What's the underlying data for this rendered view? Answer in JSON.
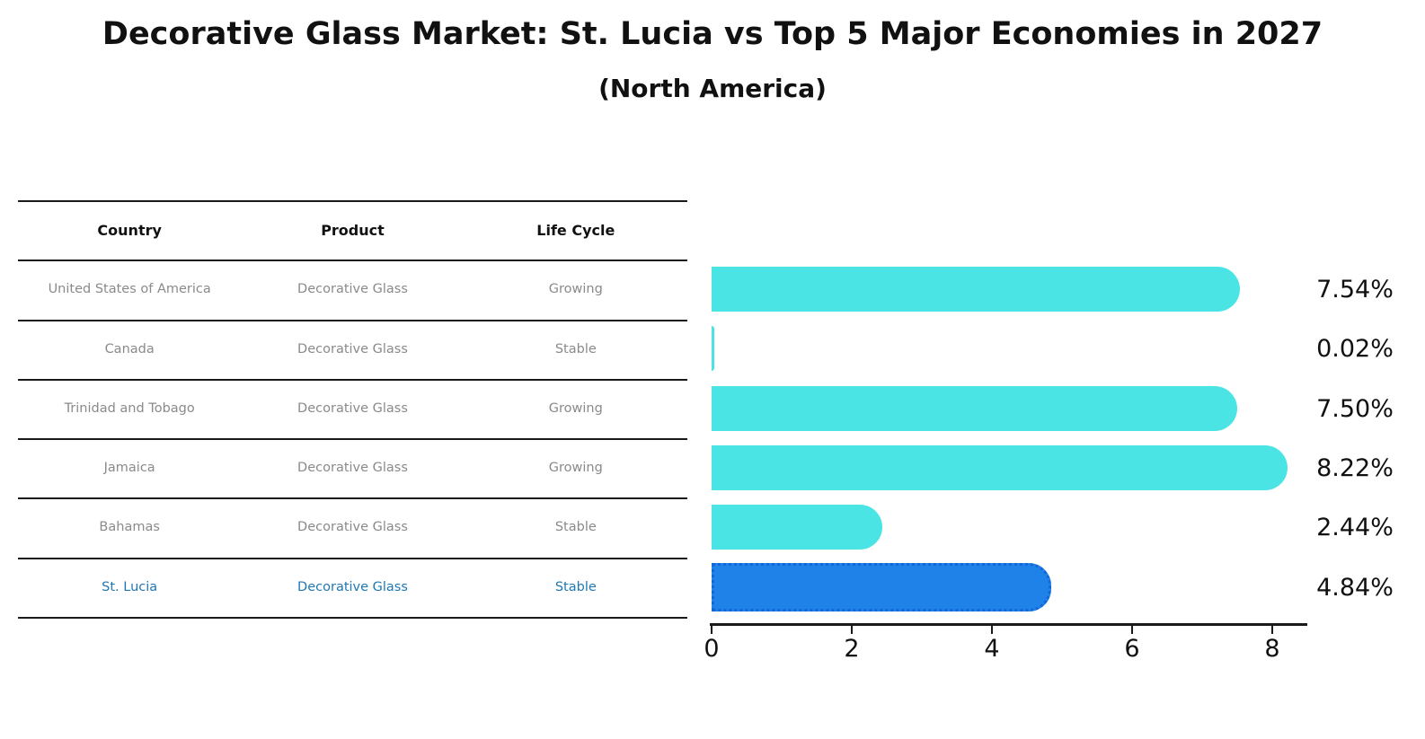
{
  "table": {
    "headers": [
      "Country",
      "Product",
      "Life Cycle"
    ],
    "rows": [
      {
        "country": "United States of America",
        "product": "Decorative Glass",
        "life_cycle": "Growing",
        "highlight": false
      },
      {
        "country": "Canada",
        "product": "Decorative Glass",
        "life_cycle": "Stable",
        "highlight": false
      },
      {
        "country": "Trinidad and Tobago",
        "product": "Decorative Glass",
        "life_cycle": "Growing",
        "highlight": false
      },
      {
        "country": "Jamaica",
        "product": "Decorative Glass",
        "life_cycle": "Growing",
        "highlight": false
      },
      {
        "country": "Bahamas",
        "product": "Decorative Glass",
        "life_cycle": "Stable",
        "highlight": false
      },
      {
        "country": "St. Lucia",
        "product": "Decorative Glass",
        "life_cycle": "Stable",
        "highlight": true
      }
    ]
  },
  "chart_data": {
    "type": "bar",
    "orientation": "horizontal",
    "title": "Decorative Glass Market: St. Lucia vs Top 5 Major Economies in 2027",
    "subtitle": "(North America)",
    "categories": [
      "United States of America",
      "Canada",
      "Trinidad and Tobago",
      "Jamaica",
      "Bahamas",
      "St. Lucia"
    ],
    "values": [
      7.54,
      0.02,
      7.5,
      8.22,
      2.44,
      4.84
    ],
    "value_labels": [
      "7.54%",
      "0.02%",
      "7.50%",
      "8.22%",
      "2.44%",
      "4.84%"
    ],
    "highlight_index": 5,
    "x_ticks": [
      "0",
      "2",
      "4",
      "6",
      "8"
    ],
    "xlim": [
      0,
      8.5
    ],
    "grid": false,
    "legend": "none",
    "colors": {
      "bar": "#4BE4E4",
      "highlight_bar": "#1E82E8",
      "highlight_border": "#1266D8",
      "highlight_text": "#1f77b4",
      "table_text": "#8a8a8a",
      "axis": "#1a1a1a"
    }
  }
}
